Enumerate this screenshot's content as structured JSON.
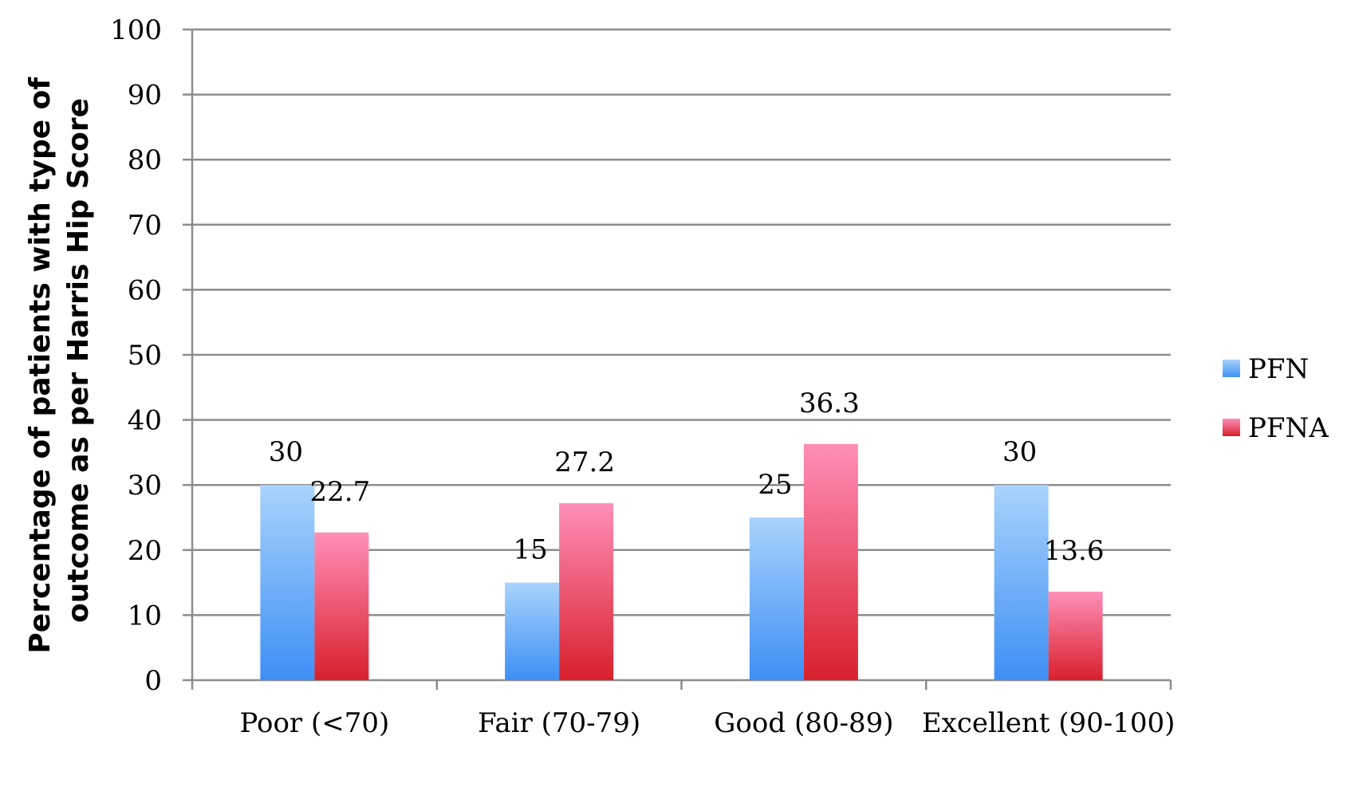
{
  "chart_data": {
    "type": "bar",
    "title": "",
    "xlabel": "",
    "ylabel_line1": "Percentage of patients with type of",
    "ylabel_line2": "outcome as per Harris Hip Score",
    "ylim": [
      0,
      100
    ],
    "ytick_step": 10,
    "grid": true,
    "legend_position": "right",
    "categories": [
      "Poor (<70)",
      "Fair (70-79)",
      "Good (80-89)",
      "Excellent (90-100)"
    ],
    "series": [
      {
        "name": "PFN",
        "values": [
          30,
          15,
          25,
          30
        ],
        "labels": [
          "30",
          "15",
          "25",
          "30"
        ],
        "color_top": "#a9d3fb",
        "color_bottom": "#3d8ff5"
      },
      {
        "name": "PFNA",
        "values": [
          22.7,
          27.2,
          36.3,
          13.6
        ],
        "labels": [
          "22.7",
          "27.2",
          "36.3",
          "13.6"
        ],
        "color_top": "#ff8fb8",
        "color_bottom": "#d8202b"
      }
    ]
  }
}
